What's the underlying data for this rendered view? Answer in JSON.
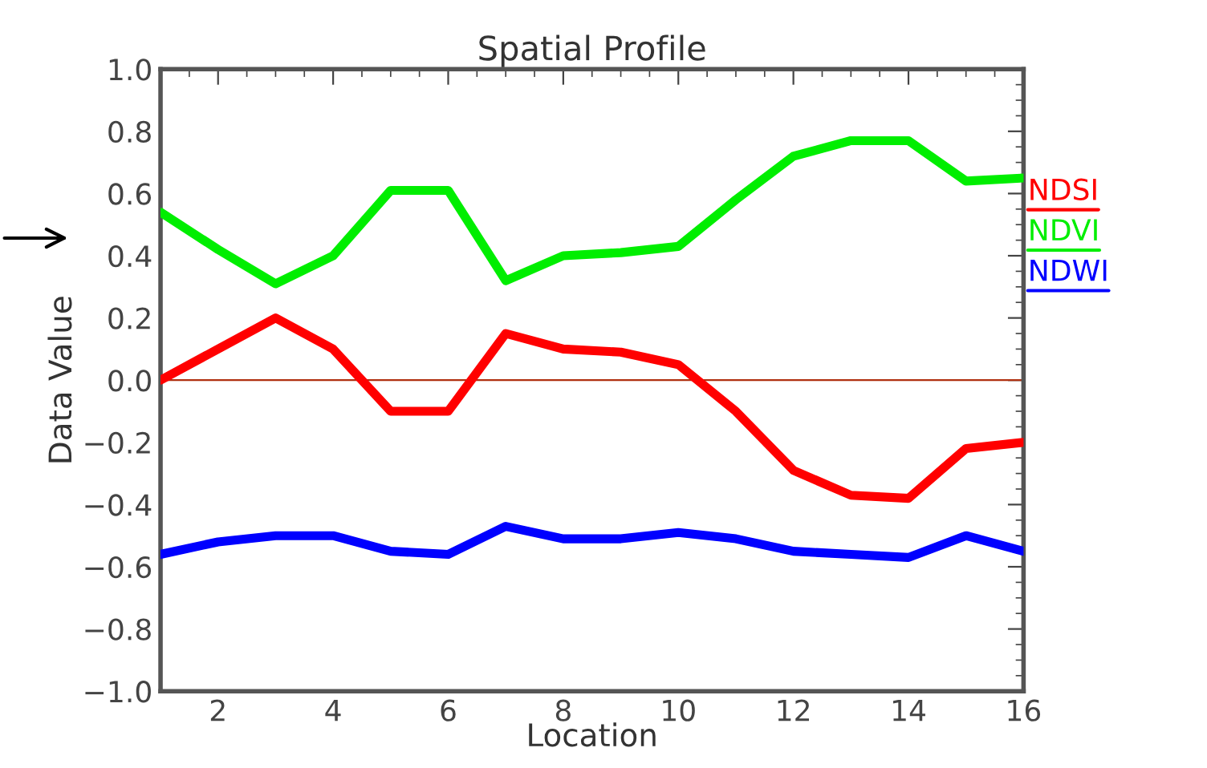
{
  "chart_data": {
    "type": "line",
    "title": "Spatial Profile",
    "xlabel": "Location",
    "ylabel": "Data Value",
    "x": [
      1,
      2,
      3,
      4,
      5,
      6,
      7,
      8,
      9,
      10,
      11,
      12,
      13,
      14,
      15,
      16
    ],
    "series": [
      {
        "name": "NDSI",
        "color": "#ff0000",
        "values": [
          0.0,
          0.1,
          0.2,
          0.1,
          -0.1,
          -0.1,
          0.15,
          0.1,
          0.09,
          0.05,
          -0.1,
          -0.29,
          -0.37,
          -0.38,
          -0.22,
          -0.2
        ]
      },
      {
        "name": "NDVI",
        "color": "#00ee00",
        "values": [
          0.54,
          0.42,
          0.31,
          0.4,
          0.61,
          0.61,
          0.32,
          0.4,
          0.41,
          0.43,
          0.58,
          0.72,
          0.77,
          0.77,
          0.64,
          0.65
        ]
      },
      {
        "name": "NDWI",
        "color": "#0000ff",
        "values": [
          -0.56,
          -0.52,
          -0.5,
          -0.5,
          -0.55,
          -0.56,
          -0.47,
          -0.51,
          -0.51,
          -0.49,
          -0.51,
          -0.55,
          -0.56,
          -0.57,
          -0.5,
          -0.55
        ]
      }
    ],
    "xlim": [
      1,
      16
    ],
    "xticks": [
      2,
      4,
      6,
      8,
      10,
      12,
      14,
      16
    ],
    "ylim": [
      -1.0,
      1.0
    ],
    "yticks": [
      {
        "value": -1.0,
        "label": "−1.0"
      },
      {
        "value": -0.8,
        "label": "−0.8"
      },
      {
        "value": -0.6,
        "label": "−0.6"
      },
      {
        "value": -0.4,
        "label": "−0.4"
      },
      {
        "value": -0.2,
        "label": "−0.2"
      },
      {
        "value": 0.0,
        "label": "0.0"
      },
      {
        "value": 0.2,
        "label": "0.2"
      },
      {
        "value": 0.4,
        "label": "0.4"
      },
      {
        "value": 0.6,
        "label": "0.6"
      },
      {
        "value": 0.8,
        "label": "0.8"
      },
      {
        "value": 1.0,
        "label": "1.0"
      }
    ],
    "ref_lines": [
      {
        "axis": "y",
        "value": 0,
        "color": "#b03010"
      }
    ],
    "legend": "right",
    "grid": false,
    "marker": "none",
    "line_style": "solid"
  }
}
